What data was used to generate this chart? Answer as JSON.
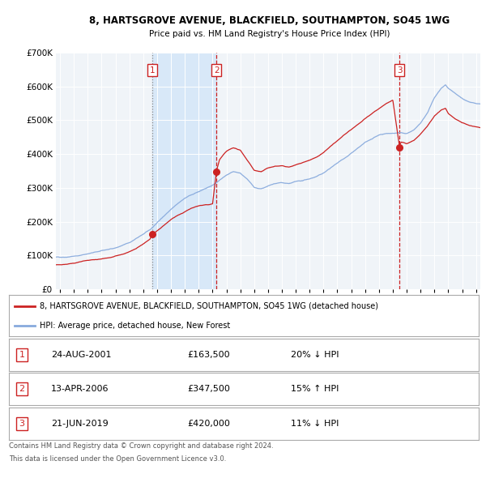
{
  "title": "8, HARTSGROVE AVENUE, BLACKFIELD, SOUTHAMPTON, SO45 1WG",
  "subtitle": "Price paid vs. HM Land Registry's House Price Index (HPI)",
  "red_label": "8, HARTSGROVE AVENUE, BLACKFIELD, SOUTHAMPTON, SO45 1WG (detached house)",
  "blue_label": "HPI: Average price, detached house, New Forest",
  "sale_events": [
    {
      "num": 1,
      "date": "24-AUG-2001",
      "price": "£163,500",
      "change": "20% ↓ HPI"
    },
    {
      "num": 2,
      "date": "13-APR-2006",
      "price": "£347,500",
      "change": "15% ↑ HPI"
    },
    {
      "num": 3,
      "date": "21-JUN-2019",
      "price": "£420,000",
      "change": "11% ↓ HPI"
    }
  ],
  "footnote1": "Contains HM Land Registry data © Crown copyright and database right 2024.",
  "footnote2": "This data is licensed under the Open Government Licence v3.0.",
  "ylim": [
    0,
    700000
  ],
  "xlim_start": 1994.7,
  "xlim_end": 2025.3,
  "sale_years": [
    2001.65,
    2006.28,
    2019.47
  ],
  "sale_prices": [
    163500,
    347500,
    420000
  ],
  "bg_color": "#ffffff",
  "plot_bg_color": "#f0f4f8",
  "red_color": "#cc2222",
  "blue_color": "#88aadd",
  "grid_color": "#ffffff",
  "marker_color": "#cc2222",
  "shade_color": "#d8e8f8"
}
